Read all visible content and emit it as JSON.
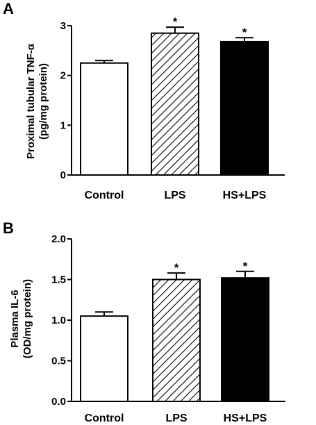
{
  "chart_data": [
    {
      "panel": "A",
      "type": "bar",
      "categories": [
        "Control",
        "LPS",
        "HS+LPS"
      ],
      "values": [
        2.25,
        2.85,
        2.68
      ],
      "errors": [
        0.05,
        0.12,
        0.08
      ],
      "significance": [
        "",
        "*",
        "*"
      ],
      "fills": [
        "white",
        "hatched",
        "black"
      ],
      "ylabel_lines": [
        "Proximal tubular TNF-α",
        "(pg/mg protein)"
      ],
      "ylim": [
        0,
        3
      ],
      "yticks": [
        "0",
        "1",
        "2",
        "3"
      ],
      "ytick_values": [
        0,
        1,
        2,
        3
      ],
      "grid": false
    },
    {
      "panel": "B",
      "type": "bar",
      "categories": [
        "Control",
        "LPS",
        "HS+LPS"
      ],
      "values": [
        1.05,
        1.5,
        1.52
      ],
      "errors": [
        0.05,
        0.08,
        0.08
      ],
      "significance": [
        "",
        "*",
        "*"
      ],
      "fills": [
        "white",
        "hatched",
        "black"
      ],
      "ylabel_lines": [
        "Plasma IL-6",
        "(OD/mg protein)"
      ],
      "ylim": [
        0,
        2.0
      ],
      "yticks": [
        "0.0",
        "0.5",
        "1.0",
        "1.5",
        "2.0"
      ],
      "ytick_values": [
        0,
        0.5,
        1.0,
        1.5,
        2.0
      ],
      "grid": false
    }
  ],
  "colors": {
    "axis": "#000000",
    "bar_stroke": "#000000",
    "black_fill": "#000000",
    "white_fill": "#ffffff"
  }
}
